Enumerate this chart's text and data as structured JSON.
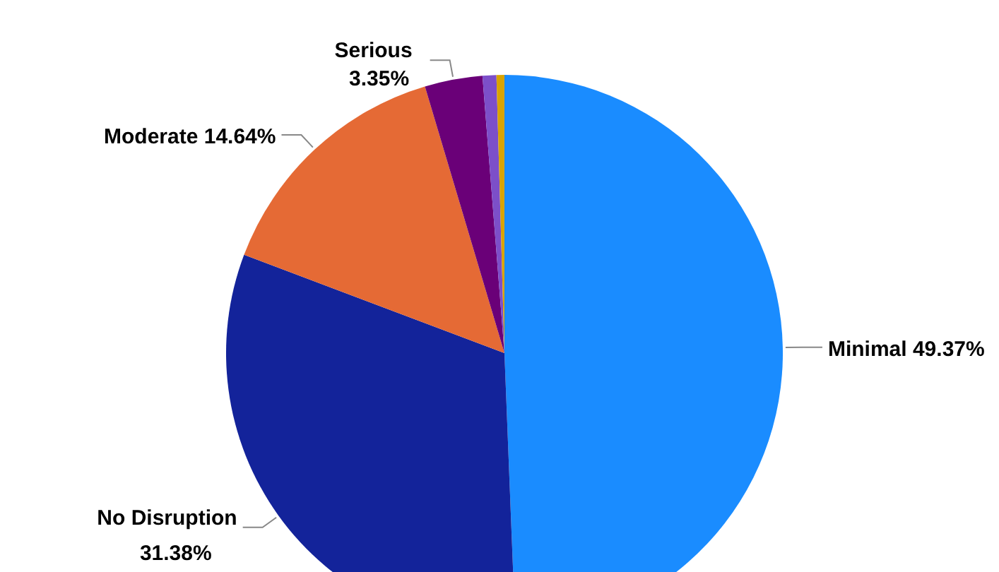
{
  "chart_data": {
    "type": "pie",
    "categories": [
      "Minimal",
      "No Disruption",
      "Moderate",
      "Serious",
      null,
      null
    ],
    "values": [
      49.37,
      31.38,
      14.64,
      3.35,
      0.8,
      0.46
    ],
    "value_labels": [
      "49.37%",
      "31.38%",
      "14.64%",
      "3.35%",
      null,
      null
    ],
    "colors": [
      "#1a8cff",
      "#13239a",
      "#e56a35",
      "#6a0078",
      "#7c4fc9",
      "#d9a400"
    ],
    "legend": false
  }
}
